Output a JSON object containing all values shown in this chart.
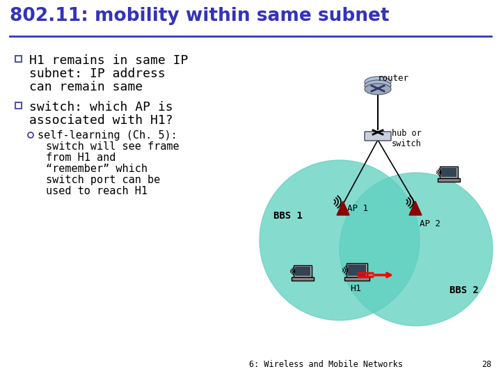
{
  "title": "802.11: mobility within same subnet",
  "title_color": "#3333BB",
  "background_color": "#FFFFFF",
  "bullet1_lines": [
    "H1 remains in same IP",
    "subnet: IP address",
    "can remain same"
  ],
  "bullet2_lines": [
    "switch: which AP is",
    "associated with H1?"
  ],
  "sub_bullet_line1": "self-learning (Ch. 5):",
  "sub_lines": [
    "switch will see frame",
    "from H1 and",
    "“remember” which",
    "switch port can be",
    "used to reach H1"
  ],
  "footer": "6: Wireless and Mobile Networks",
  "page_num": "28",
  "bbs1_label": "BBS 1",
  "bbs2_label": "BBS 2",
  "ap1_label": "AP 1",
  "ap2_label": "AP 2",
  "router_label": "router",
  "hub_label": "hub or\nswitch",
  "h1_label": "H1",
  "teal_color": "#5ECFBF",
  "teal_alpha": 0.75
}
